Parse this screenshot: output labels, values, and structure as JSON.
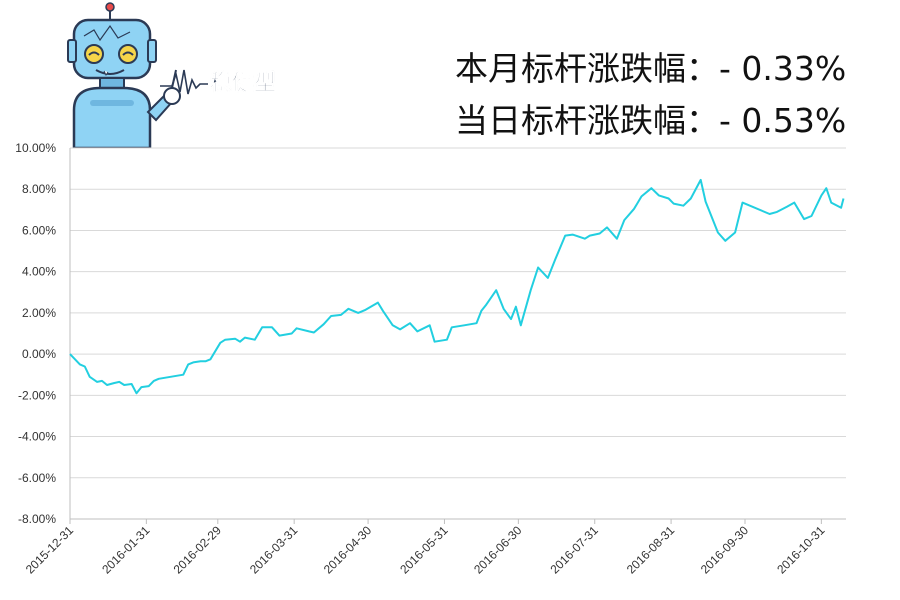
{
  "header": {
    "mascot_text": "稳健型",
    "monthly_change": "本月标杆涨跌幅：- 0.33%",
    "daily_change": "当日标杆涨跌幅：- 0.53%"
  },
  "colors": {
    "line": "#22cfe0",
    "grid": "#d9d9d9",
    "axis": "#bfbfbf",
    "robot_body": "#8fd3f4",
    "robot_dark": "#2b3a55"
  },
  "chart_data": {
    "type": "line",
    "title": "",
    "xlabel": "",
    "ylabel": "",
    "ylim": [
      -8,
      10
    ],
    "yticks": [
      "10.00%",
      "8.00%",
      "6.00%",
      "4.00%",
      "2.00%",
      "0.00%",
      "-2.00%",
      "-4.00%",
      "-6.00%",
      "-8.00%"
    ],
    "xlim": [
      "2015-12-31",
      "2016-11-10"
    ],
    "xticks": [
      "2015-12-31",
      "2016-01-31",
      "2016-02-29",
      "2016-03-31",
      "2016-04-30",
      "2016-05-31",
      "2016-06-30",
      "2016-07-31",
      "2016-08-31",
      "2016-09-30",
      "2016-10-31"
    ],
    "grid": true,
    "series": [
      {
        "x": [
          "2015-12-31",
          "2016-01-04",
          "2016-01-06",
          "2016-01-08",
          "2016-01-11",
          "2016-01-13",
          "2016-01-15",
          "2016-01-18",
          "2016-01-20",
          "2016-01-22",
          "2016-01-25",
          "2016-01-27",
          "2016-01-29",
          "2016-02-01",
          "2016-02-03",
          "2016-02-05",
          "2016-02-15",
          "2016-02-17",
          "2016-02-19",
          "2016-02-22",
          "2016-02-24",
          "2016-02-26",
          "2016-03-01",
          "2016-03-03",
          "2016-03-07",
          "2016-03-09",
          "2016-03-11",
          "2016-03-15",
          "2016-03-18",
          "2016-03-22",
          "2016-03-25",
          "2016-03-30",
          "2016-04-01",
          "2016-04-06",
          "2016-04-08",
          "2016-04-12",
          "2016-04-15",
          "2016-04-19",
          "2016-04-22",
          "2016-04-26",
          "2016-04-29",
          "2016-05-04",
          "2016-05-06",
          "2016-05-10",
          "2016-05-13",
          "2016-05-17",
          "2016-05-20",
          "2016-05-25",
          "2016-05-27",
          "2016-06-01",
          "2016-06-03",
          "2016-06-08",
          "2016-06-13",
          "2016-06-15",
          "2016-06-17",
          "2016-06-21",
          "2016-06-24",
          "2016-06-27",
          "2016-06-29",
          "2016-07-01",
          "2016-07-05",
          "2016-07-08",
          "2016-07-12",
          "2016-07-15",
          "2016-07-19",
          "2016-07-22",
          "2016-07-27",
          "2016-07-29",
          "2016-08-02",
          "2016-08-05",
          "2016-08-09",
          "2016-08-12",
          "2016-08-16",
          "2016-08-19",
          "2016-08-23",
          "2016-08-26",
          "2016-08-30",
          "2016-09-01",
          "2016-09-05",
          "2016-09-08",
          "2016-09-12",
          "2016-09-14",
          "2016-09-19",
          "2016-09-22",
          "2016-09-26",
          "2016-09-29",
          "2016-10-10",
          "2016-10-13",
          "2016-10-17",
          "2016-10-20",
          "2016-10-24",
          "2016-10-27",
          "2016-10-31",
          "2016-11-02",
          "2016-11-04",
          "2016-11-08",
          "2016-11-09"
        ],
        "values": [
          0.0,
          -0.5,
          -0.6,
          -1.1,
          -1.35,
          -1.3,
          -1.5,
          -1.4,
          -1.35,
          -1.5,
          -1.45,
          -1.9,
          -1.6,
          -1.55,
          -1.3,
          -1.2,
          -1.0,
          -0.5,
          -0.4,
          -0.35,
          -0.35,
          -0.25,
          0.55,
          0.7,
          0.75,
          0.6,
          0.8,
          0.7,
          1.3,
          1.3,
          0.9,
          1.0,
          1.25,
          1.1,
          1.05,
          1.45,
          1.85,
          1.9,
          2.2,
          2.0,
          2.15,
          2.5,
          2.1,
          1.4,
          1.2,
          1.5,
          1.1,
          1.4,
          0.6,
          0.7,
          1.3,
          1.4,
          1.5,
          2.1,
          2.4,
          3.1,
          2.2,
          1.7,
          2.3,
          1.4,
          3.1,
          4.2,
          3.7,
          4.6,
          5.75,
          5.8,
          5.6,
          5.75,
          5.85,
          6.15,
          5.6,
          6.5,
          7.05,
          7.65,
          8.05,
          7.7,
          7.55,
          7.3,
          7.2,
          7.55,
          8.45,
          7.4,
          5.9,
          5.5,
          5.9,
          7.35,
          6.8,
          6.9,
          7.15,
          7.35,
          6.55,
          6.7,
          7.7,
          8.05,
          7.35,
          7.1,
          7.55
        ]
      }
    ]
  }
}
